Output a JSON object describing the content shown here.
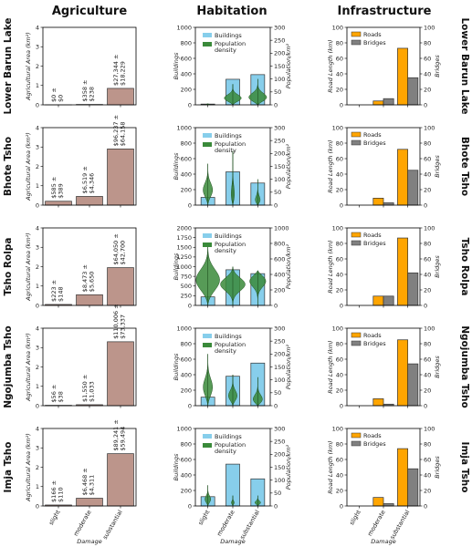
{
  "columns": [
    "Agriculture",
    "Habitation",
    "Infrastructure"
  ],
  "rows": [
    "Lower Barun Lake",
    "Bhote Tsho",
    "Tsho Rolpa",
    "Ngojumba Tsho",
    "Imja Tsho"
  ],
  "colors": {
    "agriculture_bar": "#bc958b",
    "buildings": "#87ceeb",
    "population": "#3a8a3a",
    "roads": "#ffa500",
    "bridges": "#808080"
  },
  "chart_data": {
    "type": "bar",
    "categories": [
      "slight",
      "moderate",
      "substantial"
    ],
    "xlabel": "Damage",
    "agriculture": {
      "ylabel": "Agricultural Area (km²)",
      "ylim": [
        0,
        4
      ],
      "yticks": [
        0,
        1,
        2,
        3,
        4
      ],
      "panels": [
        {
          "row": "Lower Barun Lake",
          "values": [
            0.0,
            0.02,
            0.85
          ],
          "annotations": [
            "$0 ± $0",
            "$358 ± $238",
            "$27,344 ± $18,229"
          ]
        },
        {
          "row": "Bhote Tsho",
          "values": [
            0.2,
            0.45,
            2.9
          ],
          "annotations": [
            "$585 ± $389",
            "$6,519 ± $4,346",
            "$96,237 ± $64,158"
          ]
        },
        {
          "row": "Tsho Rolpa",
          "values": [
            0.05,
            0.55,
            1.95
          ],
          "annotations": [
            "$223 ± $148",
            "$8,473 ± $5,650",
            "$64,050 ± $42,700"
          ]
        },
        {
          "row": "Ngojumba Tsho",
          "values": [
            0.02,
            0.05,
            3.3
          ],
          "annotations": [
            "$56 ± $38",
            "$1,550 ± $1,033",
            "$110,006 ± $73,337"
          ]
        },
        {
          "row": "Imja Tsho",
          "values": [
            0.05,
            0.4,
            2.7
          ],
          "annotations": [
            "$166 ± $110",
            "$6,468 ± $4,311",
            "$89,241 ± $59,494"
          ]
        }
      ]
    },
    "habitation": {
      "ylabel": "Buildings",
      "y2label": "Population/km²",
      "legend": [
        "Buildings",
        "Population density"
      ],
      "panels": [
        {
          "row": "Lower Barun Lake",
          "ylim": [
            0,
            1000
          ],
          "yticks": [
            0,
            200,
            400,
            600,
            800,
            1000
          ],
          "y2lim": [
            0,
            300
          ],
          "y2ticks": [
            0,
            50,
            100,
            150,
            200,
            250,
            300
          ],
          "buildings": [
            10,
            330,
            390
          ],
          "violins": [
            {
              "min": 0,
              "max": 5,
              "peak": 2,
              "w": 0.05
            },
            {
              "min": 0,
              "max": 80,
              "peak": 20,
              "w": 0.3
            },
            {
              "min": 0,
              "max": 100,
              "peak": 20,
              "w": 0.35
            }
          ]
        },
        {
          "row": "Bhote Tsho",
          "ylim": [
            0,
            1000
          ],
          "yticks": [
            0,
            200,
            400,
            600,
            800,
            1000
          ],
          "y2lim": [
            0,
            300
          ],
          "y2ticks": [
            0,
            50,
            100,
            150,
            200,
            250,
            300
          ],
          "buildings": [
            100,
            430,
            285
          ],
          "violins": [
            {
              "min": 0,
              "max": 160,
              "peak": 50,
              "w": 0.15
            },
            {
              "min": 0,
              "max": 210,
              "peak": 10,
              "w": 0.1
            },
            {
              "min": 0,
              "max": 100,
              "peak": 5,
              "w": 0.15
            }
          ]
        },
        {
          "row": "Tsho Rolpa",
          "ylim": [
            0,
            2000
          ],
          "yticks": [
            0,
            250,
            500,
            750,
            1000,
            1250,
            1500,
            1750,
            2000
          ],
          "y2lim": [
            0,
            1000
          ],
          "y2ticks": [
            0,
            200,
            400,
            600,
            800,
            1000
          ],
          "buildings": [
            220,
            920,
            820
          ],
          "violins": [
            {
              "min": 0,
              "max": 800,
              "peak": 300,
              "w": 0.35
            },
            {
              "min": 0,
              "max": 500,
              "peak": 280,
              "w": 0.35
            },
            {
              "min": 0,
              "max": 450,
              "peak": 350,
              "w": 0.3
            }
          ]
        },
        {
          "row": "Ngojumba Tsho",
          "ylim": [
            0,
            1000
          ],
          "yticks": [
            0,
            200,
            400,
            600,
            800,
            1000
          ],
          "y2lim": [
            0,
            300
          ],
          "y2ticks": [
            0,
            50,
            100,
            150,
            200,
            250,
            300
          ],
          "buildings": [
            110,
            380,
            550
          ],
          "violins": [
            {
              "min": 0,
              "max": 200,
              "peak": 60,
              "w": 0.15
            },
            {
              "min": 0,
              "max": 120,
              "peak": 30,
              "w": 0.15
            },
            {
              "min": 0,
              "max": 110,
              "peak": 10,
              "w": 0.25
            }
          ]
        },
        {
          "row": "Imja Tsho",
          "ylim": [
            0,
            1000
          ],
          "yticks": [
            0,
            200,
            400,
            600,
            800,
            1000
          ],
          "y2lim": [
            0,
            300
          ],
          "y2ticks": [
            0,
            50,
            100,
            150,
            200,
            250,
            300
          ],
          "buildings": [
            120,
            540,
            350
          ],
          "violins": [
            {
              "min": 0,
              "max": 80,
              "peak": 20,
              "w": 0.1
            },
            {
              "min": 0,
              "max": 40,
              "peak": 10,
              "w": 0.05
            },
            {
              "min": 0,
              "max": 40,
              "peak": 10,
              "w": 0.1
            }
          ]
        }
      ]
    },
    "infrastructure": {
      "ylabel": "Road Length (km)",
      "y2label": "Bridges",
      "legend": [
        "Roads",
        "Bridges"
      ],
      "ylim": [
        0,
        100
      ],
      "yticks": [
        0,
        20,
        40,
        60,
        80,
        100
      ],
      "y2lim": [
        0,
        100
      ],
      "y2ticks": [
        0,
        20,
        40,
        60,
        80,
        100
      ],
      "panels": [
        {
          "row": "Lower Barun Lake",
          "roads": [
            0,
            5,
            73
          ],
          "bridges": [
            0,
            8,
            35
          ]
        },
        {
          "row": "Bhote Tsho",
          "roads": [
            0,
            9,
            72
          ],
          "bridges": [
            0,
            3,
            45
          ]
        },
        {
          "row": "Tsho Rolpa",
          "roads": [
            0,
            12,
            87
          ],
          "bridges": [
            0,
            12,
            42
          ]
        },
        {
          "row": "Ngojumba Tsho",
          "roads": [
            0,
            9,
            85
          ],
          "bridges": [
            0,
            2,
            54
          ]
        },
        {
          "row": "Imja Tsho",
          "roads": [
            0,
            11,
            74
          ],
          "bridges": [
            0,
            3,
            48
          ]
        }
      ]
    }
  }
}
